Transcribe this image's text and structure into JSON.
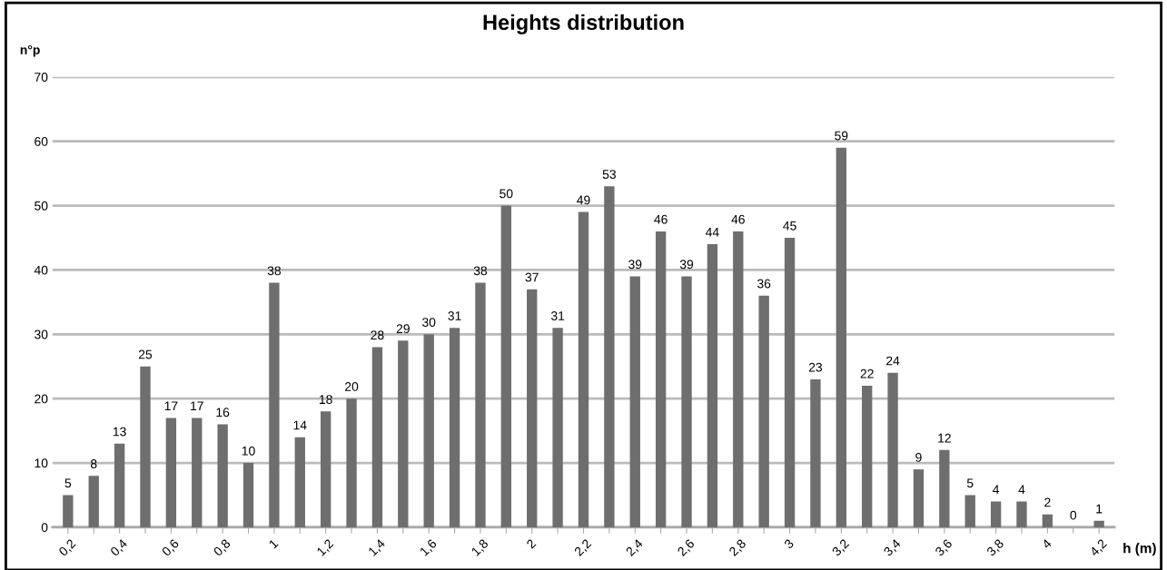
{
  "chart_data": {
    "type": "bar",
    "title": "Heights distribution",
    "xlabel": "h (m)",
    "ylabel": "n°p",
    "categories": [
      "0,2",
      null,
      "0,4",
      null,
      "0,6",
      null,
      "0,8",
      null,
      "1",
      null,
      "1,2",
      null,
      "1,4",
      null,
      "1,6",
      null,
      "1,8",
      null,
      "2",
      null,
      "2,2",
      null,
      "2,4",
      null,
      "2,6",
      null,
      "2,8",
      null,
      "3",
      null,
      "3,2",
      null,
      "3,4",
      null,
      "3,6",
      null,
      "3,8",
      null,
      "4",
      null,
      "4,2"
    ],
    "values": [
      5,
      8,
      13,
      25,
      17,
      17,
      16,
      10,
      38,
      14,
      18,
      20,
      28,
      29,
      30,
      31,
      38,
      50,
      37,
      31,
      49,
      53,
      39,
      46,
      39,
      44,
      46,
      36,
      45,
      23,
      59,
      22,
      24,
      9,
      12,
      5,
      4,
      4,
      2,
      0,
      1
    ],
    "color": "#6e6e6e",
    "ylim": [
      0,
      70
    ],
    "yticks": [
      0,
      10,
      20,
      30,
      40,
      50,
      60,
      70
    ],
    "grid": "y",
    "data_labels": true
  }
}
